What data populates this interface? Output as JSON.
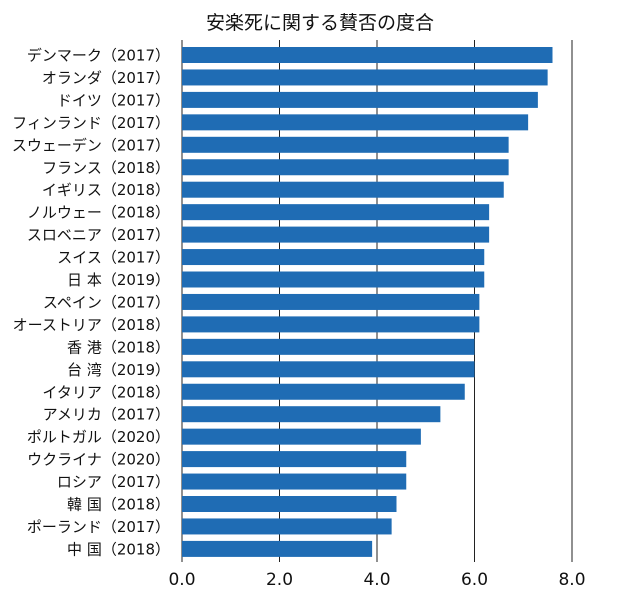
{
  "chart_data": {
    "type": "bar",
    "orientation": "horizontal",
    "title": "安楽死に関する賛否の度合",
    "xlabel": "",
    "ylabel": "",
    "xlim": [
      0,
      8
    ],
    "x_ticks": [
      "0.0",
      "2.0",
      "4.0",
      "6.0",
      "8.0"
    ],
    "grid": "vertical",
    "bar_color": "#1f6cb4",
    "categories": [
      "デンマーク（2017）",
      "オランダ（2017）",
      "ドイツ（2017）",
      "フィンランド（2017）",
      "スウェーデン（2017）",
      "フランス（2018）",
      "イギリス（2018）",
      "ノルウェー（2018）",
      "スロベニア（2017）",
      "スイス（2017）",
      "日 本（2019）",
      "スペイン（2017）",
      "オーストリア（2018）",
      "香 港（2018）",
      "台 湾（2019）",
      "イタリア（2018）",
      "アメリカ（2017）",
      "ポルトガル（2020）",
      "ウクライナ（2020）",
      "ロシア（2017）",
      "韓 国（2018）",
      "ポーランド（2017）",
      "中 国（2018）"
    ],
    "values": [
      7.6,
      7.5,
      7.3,
      7.1,
      6.7,
      6.7,
      6.6,
      6.3,
      6.3,
      6.2,
      6.2,
      6.1,
      6.1,
      6.0,
      6.0,
      5.8,
      5.3,
      4.9,
      4.6,
      4.6,
      4.4,
      4.3,
      3.9
    ]
  }
}
